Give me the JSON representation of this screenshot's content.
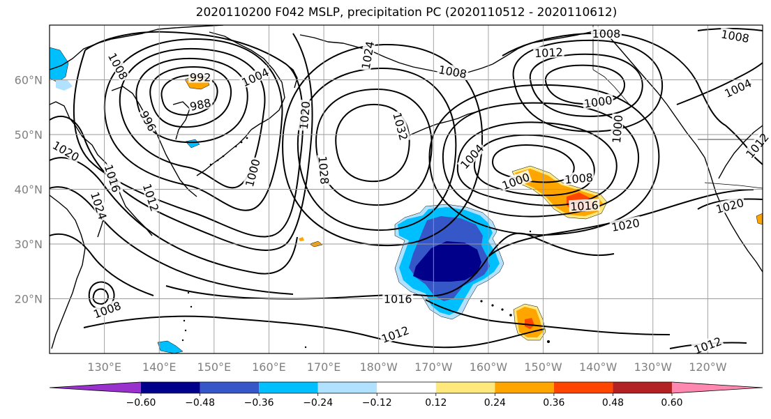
{
  "title": "2020110200 F042 MSLP, precipitation PC (2020110512 - 2020110612)",
  "map": {
    "lon_labels": [
      "130°E",
      "140°E",
      "150°E",
      "160°E",
      "170°E",
      "180°W",
      "170°W",
      "160°W",
      "150°W",
      "140°W",
      "130°W",
      "120°W"
    ],
    "lat_labels": [
      "60°N",
      "50°N",
      "40°N",
      "30°N",
      "20°N"
    ],
    "lon_range": [
      120,
      250
    ],
    "lat_range": [
      10,
      70
    ],
    "grid": true,
    "label_color": "#808080"
  },
  "isobars": {
    "units": "hPa",
    "labels": [
      {
        "text": "1008",
        "lon": 132.5,
        "lat": 62.5,
        "rot": 62
      },
      {
        "text": "992",
        "lon": 147.5,
        "lat": 60.5,
        "rot": 0
      },
      {
        "text": "1004",
        "lon": 157.5,
        "lat": 60.5,
        "rot": -25
      },
      {
        "text": "988",
        "lon": 147.5,
        "lat": 55.5,
        "rot": -12
      },
      {
        "text": "996",
        "lon": 138,
        "lat": 52.5,
        "rot": 62
      },
      {
        "text": "1020",
        "lon": 123,
        "lat": 47,
        "rot": 30
      },
      {
        "text": "1016",
        "lon": 131.5,
        "lat": 42,
        "rot": 72
      },
      {
        "text": "1012",
        "lon": 138.5,
        "lat": 38.5,
        "rot": 72
      },
      {
        "text": "1024",
        "lon": 129,
        "lat": 37,
        "rot": 72
      },
      {
        "text": "1000",
        "lon": 157,
        "lat": 43,
        "rot": -75
      },
      {
        "text": "1020",
        "lon": 166.5,
        "lat": 53.5,
        "rot": -85
      },
      {
        "text": "1024",
        "lon": 178,
        "lat": 64.5,
        "rot": -80
      },
      {
        "text": "1028",
        "lon": 170,
        "lat": 43.5,
        "rot": 85
      },
      {
        "text": "1032",
        "lon": 184,
        "lat": 51.5,
        "rot": 75
      },
      {
        "text": "1008",
        "lon": 193.5,
        "lat": 61.5,
        "rot": 10
      },
      {
        "text": "1012",
        "lon": 211,
        "lat": 65,
        "rot": -3
      },
      {
        "text": "1008",
        "lon": 221.5,
        "lat": 68.5,
        "rot": 0
      },
      {
        "text": "1008",
        "lon": 245,
        "lat": 68,
        "rot": 10
      },
      {
        "text": "1000",
        "lon": 220,
        "lat": 56,
        "rot": -8
      },
      {
        "text": "1000",
        "lon": 223.5,
        "lat": 51,
        "rot": -85
      },
      {
        "text": "1004",
        "lon": 245.5,
        "lat": 58.5,
        "rot": -25
      },
      {
        "text": "1004",
        "lon": 197,
        "lat": 46,
        "rot": -48
      },
      {
        "text": "1000",
        "lon": 205,
        "lat": 41.5,
        "rot": -20
      },
      {
        "text": "1008",
        "lon": 216.5,
        "lat": 42,
        "rot": -5
      },
      {
        "text": "1016",
        "lon": 217.5,
        "lat": 37,
        "rot": -3
      },
      {
        "text": "1020",
        "lon": 225,
        "lat": 33.5,
        "rot": -10
      },
      {
        "text": "1020",
        "lon": 244,
        "lat": 37,
        "rot": -15
      },
      {
        "text": "1012",
        "lon": 249,
        "lat": 48,
        "rot": -50
      },
      {
        "text": "1016",
        "lon": 183.5,
        "lat": 20,
        "rot": 0
      },
      {
        "text": "1012",
        "lon": 183,
        "lat": 13.5,
        "rot": -20
      },
      {
        "text": "1008",
        "lon": 130.5,
        "lat": 18,
        "rot": -20
      },
      {
        "text": "1012",
        "lon": 240,
        "lat": 11.5,
        "rot": -20
      }
    ]
  },
  "precipitation": {
    "field": "precipitation PC",
    "colorbar": {
      "ticks": [
        "−0.60",
        "−0.48",
        "−0.36",
        "−0.24",
        "−0.12",
        "0.12",
        "0.24",
        "0.36",
        "0.48",
        "0.60"
      ],
      "levels": [
        -0.6,
        -0.48,
        -0.36,
        -0.24,
        -0.12,
        0.12,
        0.24,
        0.36,
        0.48,
        0.6
      ],
      "colors": [
        "#9932cc",
        "#00008b",
        "#3657c8",
        "#00bfff",
        "#b0e2ff",
        "#ffffff",
        "#ffe87c",
        "#ffa500",
        "#ff4500",
        "#b22222",
        "#ff88b0"
      ],
      "extend": "both"
    }
  }
}
